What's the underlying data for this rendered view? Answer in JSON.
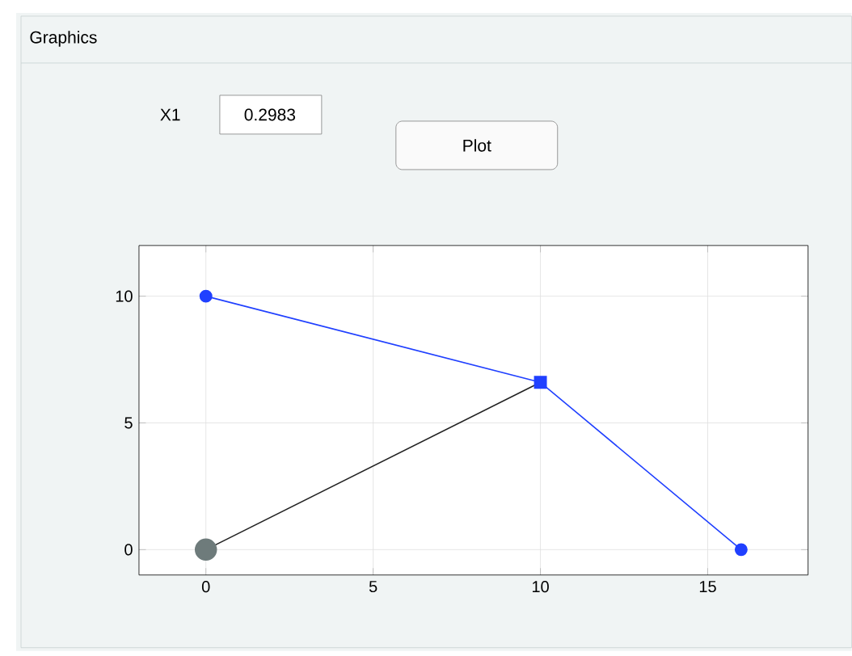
{
  "chart_data": {
    "type": "line",
    "title": "Graphics",
    "annotations": [
      "X1",
      "0.2983",
      "Plot"
    ],
    "xlim": [
      -2,
      18
    ],
    "ylim": [
      -1,
      12
    ],
    "xticks": [
      0,
      5,
      10,
      15
    ],
    "yticks": [
      0,
      5,
      10
    ],
    "grid": true,
    "series": [
      {
        "color": "#2040ff",
        "marker": "none",
        "x": [
          0,
          10,
          16
        ],
        "values": [
          10,
          6.6,
          0
        ]
      },
      {
        "color": "#202020",
        "marker": "none",
        "x": [
          0,
          10
        ],
        "values": [
          0,
          6.6
        ]
      },
      {
        "type": "scatter",
        "color": "#2040ff",
        "marker": "circle",
        "x": [
          0,
          16
        ],
        "values": [
          10,
          0
        ]
      },
      {
        "type": "scatter",
        "color": "#2040ff",
        "marker": "square",
        "x": [
          10
        ],
        "values": [
          6.6
        ]
      },
      {
        "type": "scatter",
        "color": "#6e7b7b",
        "marker": "circle",
        "x": [
          0
        ],
        "values": [
          0
        ]
      }
    ]
  }
}
